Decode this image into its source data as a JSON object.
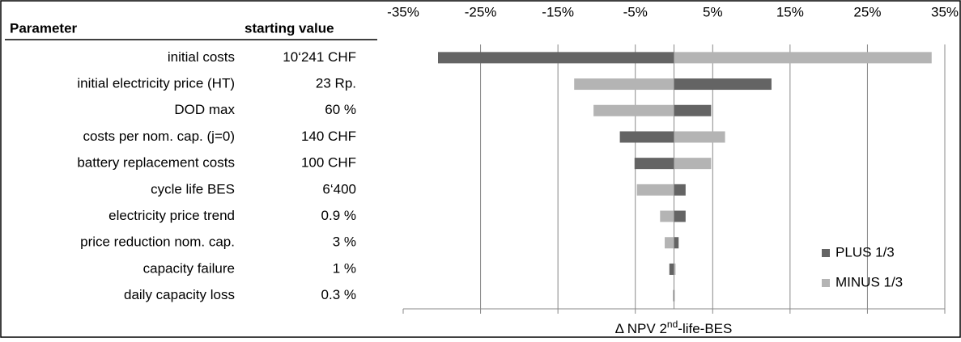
{
  "chart_data": {
    "type": "tornado",
    "table_headers": [
      "Parameter",
      "starting value"
    ],
    "categories": [
      "initial costs",
      "initial electricity price (HT)",
      "DOD max",
      "costs per nom. cap. (j=0)",
      "battery replacement costs",
      "cycle life BES",
      "electricity price trend",
      "price reduction nom. cap.",
      "capacity failure",
      "daily capacity loss"
    ],
    "starting_values": [
      "10‘241 CHF",
      "23 Rp.",
      "60 %",
      "140 CHF",
      "100 CHF",
      "6‘400",
      "0.9 %",
      "3 %",
      "1 %",
      "0.3 %"
    ],
    "series": [
      {
        "name": "PLUS 1/3",
        "color": "#646464",
        "values": [
          -30.5,
          12.6,
          4.8,
          -7,
          -5.1,
          1.5,
          1.5,
          0.6,
          -0.6,
          -0.1
        ]
      },
      {
        "name": "MINUS 1/3",
        "color": "#b4b4b4",
        "values": [
          33.3,
          -12.9,
          -10.4,
          6.6,
          4.8,
          -4.8,
          -1.8,
          -1.2,
          0.2,
          0.1
        ]
      }
    ],
    "xlim": [
      -35,
      35
    ],
    "xticks": [
      {
        "value": -35,
        "label": "-35%"
      },
      {
        "value": -25,
        "label": "-25%"
      },
      {
        "value": -15,
        "label": "-15%"
      },
      {
        "value": -5,
        "label": "-5%"
      },
      {
        "value": 5,
        "label": "5%"
      },
      {
        "value": 15,
        "label": "15%"
      },
      {
        "value": 25,
        "label": "25%"
      },
      {
        "value": 35,
        "label": "35%"
      }
    ],
    "xlabel": [
      "Δ NPV 2",
      "nd",
      "-life-BES"
    ],
    "grid": true,
    "legend": "bottom-right"
  }
}
